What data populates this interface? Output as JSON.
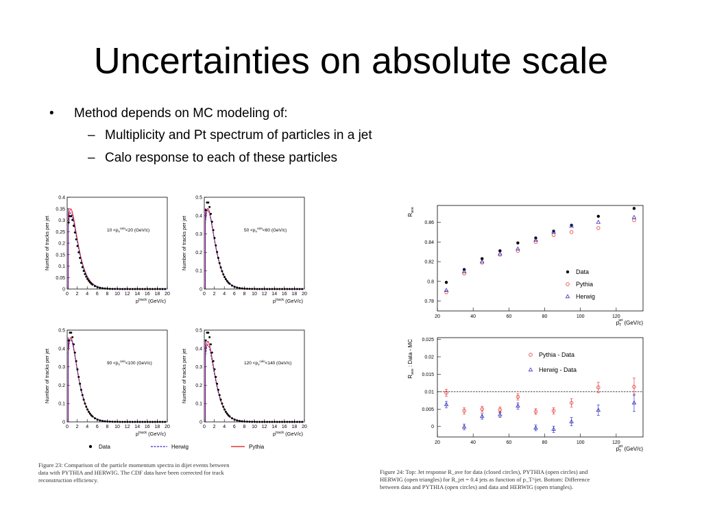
{
  "slide": {
    "title": "Uncertainties on absolute scale",
    "bullets": [
      {
        "marker": "•",
        "text": "Method depends on MC modeling of:",
        "sub": [
          {
            "marker": "–",
            "text": "Multiplicity and Pt spectrum of particles in a jet"
          },
          {
            "marker": "–",
            "text": "Calo response to each of these particles"
          }
        ]
      }
    ]
  },
  "colors": {
    "data": "#000000",
    "pythia": "#e8352e",
    "herwig": "#2f2fbf",
    "purple_line": "#8000a0"
  },
  "chart_data": [
    {
      "type": "line",
      "figure": "left",
      "panels": [
        {
          "label_prefix": "10 <",
          "label_var": "p",
          "label_sub": "T",
          "label_sup": "calo",
          "label_suffix": "<20 (GeV/c)",
          "ylim": [
            0,
            0.4
          ],
          "yticks": [
            "0",
            "0.05",
            "0.1",
            "0.15",
            "0.2",
            "0.25",
            "0.3",
            "0.35",
            "0.4"
          ]
        },
        {
          "label_prefix": "50 <",
          "label_var": "p",
          "label_sub": "T",
          "label_sup": "calo",
          "label_suffix": "<60 (GeV/c)",
          "ylim": [
            0,
            0.5
          ],
          "yticks": [
            "0",
            "0.1",
            "0.2",
            "0.3",
            "0.4",
            "0.5"
          ]
        },
        {
          "label_prefix": "90 <",
          "label_var": "p",
          "label_sub": "T",
          "label_sup": "calo",
          "label_suffix": "<100 (GeV/c)",
          "ylim": [
            0,
            0.5
          ],
          "yticks": [
            "0",
            "0.1",
            "0.2",
            "0.3",
            "0.4",
            "0.5"
          ]
        },
        {
          "label_prefix": "120 <",
          "label_var": "p",
          "label_sub": "T",
          "label_sup": "calo",
          "label_suffix": "<140 (GeV/c)",
          "ylim": [
            0,
            0.5
          ],
          "yticks": [
            "0",
            "0.1",
            "0.2",
            "0.3",
            "0.4",
            "0.5"
          ]
        }
      ],
      "xlim": [
        0,
        20
      ],
      "xticks": [
        "0",
        "2",
        "4",
        "6",
        "8",
        "10",
        "12",
        "14",
        "16",
        "18",
        "20"
      ],
      "xlabel_var": "p",
      "xlabel_sup": "track",
      "xlabel_unit": "(GeV/c)",
      "ylabel": "Number of tracks per jet",
      "legend": [
        "Data",
        "Herwig",
        "Pythia"
      ],
      "series_peaks": [
        {
          "panel": 0,
          "data_peak": 0.32,
          "pythia_peak": 0.35,
          "herwig_peak": 0.34
        },
        {
          "panel": 1,
          "data_peak": 0.475,
          "pythia_peak": 0.44,
          "herwig_peak": 0.44
        },
        {
          "panel": 2,
          "data_peak": 0.49,
          "pythia_peak": 0.46,
          "herwig_peak": 0.46
        },
        {
          "panel": 3,
          "data_peak": 0.49,
          "pythia_peak": 0.44,
          "herwig_peak": 0.43
        }
      ],
      "caption": "Figure 23:  Comparison of the particle momentum spectra in dijet events between data with PYTHIA and HERWIG. The CDF data have been corrected for track reconstruction efficiency."
    },
    {
      "type": "scatter",
      "figure": "right-top",
      "ylabel": "R",
      "ylabel_sub": "ave",
      "xlabel_var": "p",
      "xlabel_sub": "T",
      "xlabel_sup": "jet",
      "xlabel_unit": "(GeV/c)",
      "xlim": [
        20,
        135
      ],
      "ylim": [
        0.77,
        0.877
      ],
      "xticks": [
        20,
        40,
        60,
        80,
        100,
        120
      ],
      "yticks": [
        "0.78",
        "0.8",
        "0.82",
        "0.84",
        "0.86"
      ],
      "x": [
        25,
        35,
        45,
        55,
        65,
        75,
        85,
        95,
        110,
        130
      ],
      "series": [
        {
          "name": "Data",
          "values": [
            0.799,
            0.812,
            0.823,
            0.831,
            0.839,
            0.844,
            0.851,
            0.857,
            0.866,
            0.874
          ]
        },
        {
          "name": "Pythia",
          "values": [
            0.789,
            0.808,
            0.819,
            0.827,
            0.831,
            0.84,
            0.847,
            0.85,
            0.854,
            0.862
          ]
        },
        {
          "name": "Herwig",
          "values": [
            0.791,
            0.81,
            0.82,
            0.828,
            0.833,
            0.842,
            0.85,
            0.856,
            0.86,
            0.865
          ]
        }
      ],
      "legend_position": "bottom-right"
    },
    {
      "type": "scatter",
      "figure": "right-bottom",
      "ylabel": "R",
      "ylabel_sub": "ave",
      "ylabel_suffix": ": Data - MC",
      "xlabel_var": "p",
      "xlabel_sub": "T",
      "xlabel_sup": "jet",
      "xlabel_unit": "(GeV/c)",
      "xlim": [
        20,
        135
      ],
      "ylim": [
        -0.003,
        0.0255
      ],
      "xticks": [
        20,
        40,
        60,
        80,
        100,
        120
      ],
      "yticks": [
        "0",
        "0.005",
        "0.01",
        "0.015",
        "0.02",
        "0.025"
      ],
      "reference_line": 0.01,
      "x": [
        25,
        35,
        45,
        55,
        65,
        75,
        85,
        95,
        110,
        130
      ],
      "series": [
        {
          "name": "Pythia - Data",
          "values": [
            0.0097,
            0.0045,
            0.005,
            0.0048,
            0.0085,
            0.0043,
            0.0045,
            0.0068,
            0.0112,
            0.0114
          ],
          "errors": [
            0.001,
            0.0009,
            0.0008,
            0.0008,
            0.0009,
            0.0008,
            0.0009,
            0.0012,
            0.0015,
            0.0025
          ]
        },
        {
          "name": "Herwig - Data",
          "values": [
            0.0063,
            -0.0001,
            0.0029,
            0.0034,
            0.0059,
            -0.0004,
            -0.0008,
            0.0014,
            0.0047,
            0.0068
          ],
          "errors": [
            0.0009,
            0.0008,
            0.0008,
            0.0008,
            0.0009,
            0.0008,
            0.0009,
            0.0012,
            0.0015,
            0.0025
          ]
        }
      ],
      "legend_position": "top-right",
      "caption": "Figure 24:  Top:  Jet response R_ave for data (closed circles), PYTHIA (open circles) and HERWIG (open triangles) for R_jet = 0.4 jets as function of p_T^jet. Bottom: Difference between data and PYTHIA (open circles) and data and HERWIG (open triangles)."
    }
  ]
}
